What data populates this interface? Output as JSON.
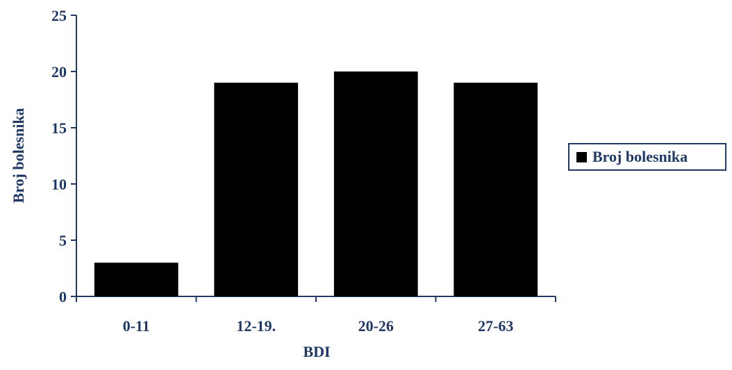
{
  "chart_data": {
    "type": "bar",
    "categories": [
      "0-11",
      "12-19.",
      "20-26",
      "27-63"
    ],
    "series": [
      {
        "name": "Broj bolesnika",
        "values": [
          3,
          19,
          20,
          19
        ],
        "color": "#000000"
      }
    ],
    "xlabel": "BDI",
    "ylabel": "Broj bolesnika",
    "ylim": [
      0,
      25
    ],
    "yticks": [
      0,
      5,
      10,
      15,
      20,
      25
    ],
    "grid": false,
    "legend_position": "right",
    "text_color": "#1f3864",
    "axis_color": "#1f3864"
  }
}
